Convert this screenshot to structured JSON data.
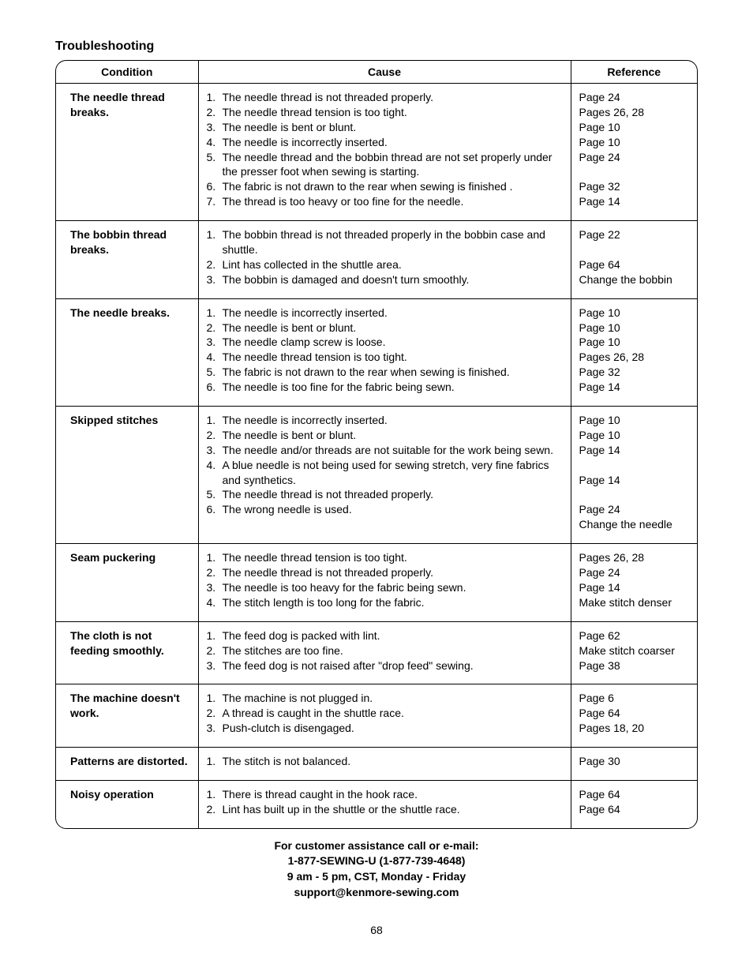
{
  "title": "Troubleshooting",
  "columns": {
    "condition": "Condition",
    "cause": "Cause",
    "reference": "Reference"
  },
  "rows": [
    {
      "condition": "The needle thread breaks.",
      "causes": [
        {
          "n": "1.",
          "t": "The needle thread is not threaded properly.",
          "r": "Page 24"
        },
        {
          "n": "2.",
          "t": "The needle thread tension is too tight.",
          "r": "Pages 26, 28"
        },
        {
          "n": "3.",
          "t": "The needle is bent or blunt.",
          "r": "Page 10"
        },
        {
          "n": "4.",
          "t": "The needle is incorrectly inserted.",
          "r": "Page 10"
        },
        {
          "n": "5.",
          "t": "The needle thread and the bobbin thread are not set properly under the presser foot when sewing is starting.",
          "r": "Page 24"
        },
        {
          "n": "",
          "t": "",
          "r": ""
        },
        {
          "n": "6.",
          "t": "The fabric is not drawn to the rear when sewing is finished .",
          "r": "Page 32"
        },
        {
          "n": "7.",
          "t": "The thread is too heavy or too fine for the needle.",
          "r": "Page 14"
        }
      ]
    },
    {
      "condition": "The bobbin thread breaks.",
      "causes": [
        {
          "n": "1.",
          "t": "The bobbin thread is not threaded properly in the bobbin case and shuttle.",
          "r": "Page 22"
        },
        {
          "n": "",
          "t": "",
          "r": ""
        },
        {
          "n": "2.",
          "t": "Lint has collected in the shuttle area.",
          "r": "Page 64"
        },
        {
          "n": "3.",
          "t": "The bobbin is damaged and doesn't turn smoothly.",
          "r": "Change the bobbin"
        }
      ]
    },
    {
      "condition": "The needle breaks.",
      "causes": [
        {
          "n": "1.",
          "t": "The needle is incorrectly inserted.",
          "r": "Page 10"
        },
        {
          "n": "2.",
          "t": "The needle is bent or blunt.",
          "r": "Page 10"
        },
        {
          "n": "3.",
          "t": "The needle clamp screw is loose.",
          "r": "Page 10"
        },
        {
          "n": "4.",
          "t": "The needle thread tension is too tight.",
          "r": "Pages 26, 28"
        },
        {
          "n": "5.",
          "t": "The fabric is not drawn to the rear when sewing is finished.",
          "r": "Page 32"
        },
        {
          "n": "6.",
          "t": "The needle is too fine for the fabric being sewn.",
          "r": "Page 14"
        }
      ]
    },
    {
      "condition": "Skipped stitches",
      "causes": [
        {
          "n": "1.",
          "t": "The needle is incorrectly inserted.",
          "r": "Page 10"
        },
        {
          "n": "2.",
          "t": "The needle is bent or blunt.",
          "r": "Page 10"
        },
        {
          "n": "3.",
          "t": "The needle and/or threads are not suitable for the work being sewn.",
          "r": "Page 14"
        },
        {
          "n": "",
          "t": "",
          "r": ""
        },
        {
          "n": "4.",
          "t": "A blue needle is not being used for sewing stretch, very fine fabrics and synthetics.",
          "r": "Page 14"
        },
        {
          "n": "",
          "t": "",
          "r": ""
        },
        {
          "n": "5.",
          "t": "The needle thread is not threaded properly.",
          "r": "Page 24"
        },
        {
          "n": "6.",
          "t": "The wrong needle is used.",
          "r": "Change the needle"
        }
      ]
    },
    {
      "condition": "Seam puckering",
      "causes": [
        {
          "n": "1.",
          "t": "The needle thread tension is too tight.",
          "r": "Pages 26, 28"
        },
        {
          "n": "2.",
          "t": "The needle thread is not threaded properly.",
          "r": "Page 24"
        },
        {
          "n": "3.",
          "t": "The needle is too heavy for the fabric being sewn.",
          "r": "Page 14"
        },
        {
          "n": "4.",
          "t": "The stitch length is too long for the fabric.",
          "r": "Make stitch denser"
        }
      ]
    },
    {
      "condition": "The cloth is not feeding smoothly.",
      "causes": [
        {
          "n": "1.",
          "t": "The feed dog is packed with lint.",
          "r": "Page 62"
        },
        {
          "n": "2.",
          "t": "The stitches are too fine.",
          "r": "Make stitch coarser"
        },
        {
          "n": "3.",
          "t": "The feed dog is not raised after \"drop feed\" sewing.",
          "r": "Page 38"
        }
      ]
    },
    {
      "condition": "The machine doesn't work.",
      "causes": [
        {
          "n": "1.",
          "t": "The machine is not plugged in.",
          "r": "Page 6"
        },
        {
          "n": "2.",
          "t": "A thread is caught in the shuttle race.",
          "r": "Page 64"
        },
        {
          "n": "3.",
          "t": "Push-clutch is disengaged.",
          "r": "Pages 18, 20"
        }
      ]
    },
    {
      "condition": "Patterns are distorted.",
      "causes": [
        {
          "n": "1.",
          "t": "The stitch is not balanced.",
          "r": "Page 30"
        }
      ]
    },
    {
      "condition": "Noisy operation",
      "causes": [
        {
          "n": "1.",
          "t": "There is thread caught in the hook race.",
          "r": "Page 64"
        },
        {
          "n": "2.",
          "t": "Lint has built up in the shuttle or the shuttle race.",
          "r": "Page 64"
        }
      ]
    }
  ],
  "footer": {
    "l1": "For customer assistance call or e-mail:",
    "l2": "1-877-SEWING-U (1-877-739-4648)",
    "l3": "9 am - 5 pm, CST, Monday - Friday",
    "l4": "support@kenmore-sewing.com"
  },
  "page_number": "68"
}
